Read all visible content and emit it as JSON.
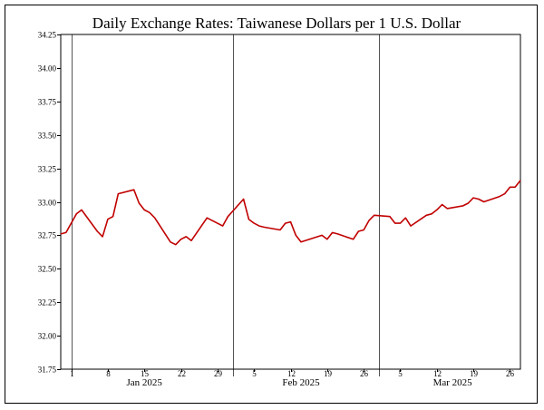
{
  "chart_data": {
    "type": "line",
    "title": "Daily Exchange Rates: Taiwanese Dollars per 1 U.S. Dollar",
    "xlabel": "",
    "ylabel": "",
    "ylim": [
      31.75,
      34.25
    ],
    "y_ticks": [
      "31.75",
      "32.00",
      "32.25",
      "32.50",
      "32.75",
      "33.00",
      "33.25",
      "33.50",
      "33.75",
      "34.00",
      "34.25"
    ],
    "x_day_ticks": [
      {
        "label": "1",
        "date": "2025-01-01"
      },
      {
        "label": "8",
        "date": "2025-01-08"
      },
      {
        "label": "15",
        "date": "2025-01-15"
      },
      {
        "label": "22",
        "date": "2025-01-22"
      },
      {
        "label": "29",
        "date": "2025-01-29"
      },
      {
        "label": "5",
        "date": "2025-02-05"
      },
      {
        "label": "12",
        "date": "2025-02-12"
      },
      {
        "label": "19",
        "date": "2025-02-19"
      },
      {
        "label": "26",
        "date": "2025-02-26"
      },
      {
        "label": "5",
        "date": "2025-03-05"
      },
      {
        "label": "12",
        "date": "2025-03-12"
      },
      {
        "label": "19",
        "date": "2025-03-19"
      },
      {
        "label": "26",
        "date": "2025-03-26"
      }
    ],
    "x_month_labels": [
      {
        "label": "Jan 2025",
        "date": "2025-01-15"
      },
      {
        "label": "Feb 2025",
        "date": "2025-02-14"
      },
      {
        "label": "Mar 2025",
        "date": "2025-03-15"
      }
    ],
    "month_boundaries": [
      "2025-01-01",
      "2025-02-01",
      "2025-03-01"
    ],
    "xlim": [
      "2024-12-30",
      "2025-03-28"
    ],
    "grid": "month-boundaries",
    "series_color": "#c00000",
    "series": [
      {
        "x": [
          "2024-12-30",
          "2024-12-31",
          "2025-01-02",
          "2025-01-03",
          "2025-01-06",
          "2025-01-07",
          "2025-01-08",
          "2025-01-09",
          "2025-01-10",
          "2025-01-13",
          "2025-01-14",
          "2025-01-15",
          "2025-01-16",
          "2025-01-17",
          "2025-01-20",
          "2025-01-21",
          "2025-01-22",
          "2025-01-23",
          "2025-01-24",
          "2025-01-27",
          "2025-01-30",
          "2025-01-31",
          "2025-02-03",
          "2025-02-04",
          "2025-02-05",
          "2025-02-06",
          "2025-02-07",
          "2025-02-10",
          "2025-02-11",
          "2025-02-12",
          "2025-02-13",
          "2025-02-14",
          "2025-02-18",
          "2025-02-19",
          "2025-02-20",
          "2025-02-21",
          "2025-02-24",
          "2025-02-25",
          "2025-02-26",
          "2025-02-27",
          "2025-02-28",
          "2025-03-03",
          "2025-03-04",
          "2025-03-05",
          "2025-03-06",
          "2025-03-07",
          "2025-03-10",
          "2025-03-11",
          "2025-03-12",
          "2025-03-13",
          "2025-03-14",
          "2025-03-17",
          "2025-03-18",
          "2025-03-19",
          "2025-03-20",
          "2025-03-21",
          "2025-03-24",
          "2025-03-25",
          "2025-03-26",
          "2025-03-27",
          "2025-03-28"
        ],
        "values": [
          32.76,
          32.77,
          32.91,
          32.94,
          32.78,
          32.74,
          32.87,
          32.89,
          33.06,
          33.09,
          32.99,
          32.94,
          32.92,
          32.88,
          32.7,
          32.68,
          32.72,
          32.74,
          32.71,
          32.88,
          32.82,
          32.89,
          33.02,
          32.87,
          32.84,
          32.82,
          32.81,
          32.79,
          32.84,
          32.85,
          32.75,
          32.7,
          32.75,
          32.72,
          32.77,
          32.76,
          32.72,
          32.78,
          32.79,
          32.86,
          32.9,
          32.89,
          32.84,
          32.84,
          32.88,
          32.82,
          32.9,
          32.91,
          32.94,
          32.98,
          32.95,
          32.97,
          32.99,
          33.03,
          33.02,
          33.0,
          33.04,
          33.06,
          33.11,
          33.11,
          33.16
        ]
      }
    ]
  }
}
